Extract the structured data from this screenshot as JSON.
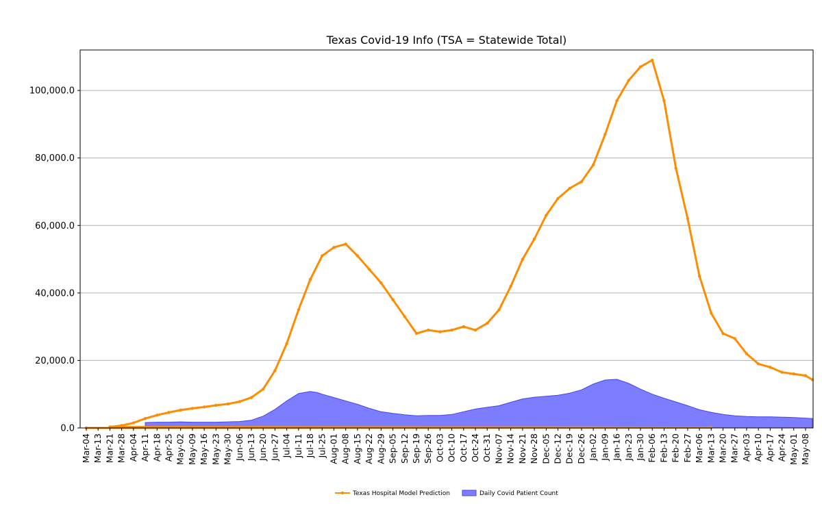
{
  "chart_data": {
    "type": "line",
    "title": "Texas Covid-19 Info (TSA = Statewide Total)",
    "xlabel": "",
    "ylabel": "",
    "ylim": [
      0,
      112000
    ],
    "grid": "horizontal",
    "legend_placement": "bottom-center",
    "x_tick_labels": [
      "Mar-04",
      "Mar-13",
      "Mar-21",
      "Mar-28",
      "Apr-04",
      "Apr-11",
      "Apr-18",
      "Apr-25",
      "May-02",
      "May-09",
      "May-16",
      "May-23",
      "May-30",
      "Jun-06",
      "Jun-13",
      "Jun-20",
      "Jun-27",
      "Jul-04",
      "Jul-11",
      "Jul-18",
      "Jul-25",
      "Aug-01",
      "Aug-08",
      "Aug-15",
      "Aug-22",
      "Aug-29",
      "Sep-05",
      "Sep-12",
      "Sep-19",
      "Sep-26",
      "Oct-03",
      "Oct-10",
      "Oct-17",
      "Oct-24",
      "Oct-31",
      "Nov-07",
      "Nov-14",
      "Nov-21",
      "Nov-28",
      "Dec-05",
      "Dec-12",
      "Dec-19",
      "Dec-26",
      "Jan-02",
      "Jan-09",
      "Jan-16",
      "Jan-23",
      "Jan-30",
      "Feb-06",
      "Feb-13",
      "Feb-20",
      "Feb-27",
      "Mar-06",
      "Mar-13",
      "Mar-20",
      "Mar-27",
      "Apr-03",
      "Apr-10",
      "Apr-17",
      "Apr-24",
      "May-01",
      "May-08"
    ],
    "y_ticks": [
      0,
      20000,
      40000,
      60000,
      80000,
      100000
    ],
    "y_tick_labels": [
      "0.0",
      "20,000.0",
      "40,000.0",
      "60,000.0",
      "80,000.0",
      "100,000.0"
    ],
    "series": [
      {
        "name": "Texas Hospital Model Prediction",
        "kind": "line",
        "color": "#ff8c00",
        "points": [
          [
            "Mar-04",
            0
          ],
          [
            "Mar-13",
            100
          ],
          [
            "Mar-21",
            300
          ],
          [
            "Mar-28",
            700
          ],
          [
            "Apr-04",
            1500
          ],
          [
            "Apr-11",
            2800
          ],
          [
            "Apr-18",
            3800
          ],
          [
            "Apr-25",
            4600
          ],
          [
            "May-02",
            5300
          ],
          [
            "May-09",
            5800
          ],
          [
            "May-16",
            6200
          ],
          [
            "May-23",
            6700
          ],
          [
            "May-30",
            7100
          ],
          [
            "Jun-06",
            7800
          ],
          [
            "Jun-13",
            9000
          ],
          [
            "Jun-20",
            11500
          ],
          [
            "Jun-27",
            17000
          ],
          [
            "Jul-04",
            25000
          ],
          [
            "Jul-11",
            35000
          ],
          [
            "Jul-18",
            44000
          ],
          [
            "Jul-25",
            51000
          ],
          [
            "Aug-01",
            53500
          ],
          [
            "Aug-08",
            54500
          ],
          [
            "Aug-15",
            51000
          ],
          [
            "Aug-22",
            47000
          ],
          [
            "Aug-29",
            43000
          ],
          [
            "Sep-05",
            38000
          ],
          [
            "Sep-12",
            33000
          ],
          [
            "Sep-19",
            28000
          ],
          [
            "Sep-26",
            29000
          ],
          [
            "Oct-03",
            28500
          ],
          [
            "Oct-10",
            29000
          ],
          [
            "Oct-17",
            30000
          ],
          [
            "Oct-24",
            29000
          ],
          [
            "Oct-31",
            31000
          ],
          [
            "Nov-07",
            35000
          ],
          [
            "Nov-14",
            42000
          ],
          [
            "Nov-21",
            50000
          ],
          [
            "Nov-28",
            56000
          ],
          [
            "Dec-05",
            63000
          ],
          [
            "Dec-12",
            68000
          ],
          [
            "Dec-19",
            71000
          ],
          [
            "Dec-26",
            73000
          ],
          [
            "Jan-02",
            78000
          ],
          [
            "Jan-09",
            87000
          ],
          [
            "Jan-16",
            97000
          ],
          [
            "Jan-23",
            103000
          ],
          [
            "Jan-30",
            107000
          ],
          [
            "Feb-06",
            109000
          ],
          [
            "Feb-13",
            97000
          ],
          [
            "Feb-20",
            77000
          ],
          [
            "Feb-27",
            62000
          ],
          [
            "Mar-06",
            45000
          ],
          [
            "Mar-13",
            34000
          ],
          [
            "Mar-20",
            28000
          ],
          [
            "Mar-27",
            26500
          ],
          [
            "Apr-03",
            22000
          ],
          [
            "Apr-10",
            19000
          ],
          [
            "Apr-17",
            18000
          ],
          [
            "Apr-24",
            16500
          ],
          [
            "May-01",
            16000
          ],
          [
            "May-08",
            15500
          ],
          [
            "May-12",
            14300
          ]
        ]
      },
      {
        "name": "Daily Covid Patient Count",
        "kind": "area",
        "color": "#6666ff",
        "points": [
          [
            "Apr-11",
            1600
          ],
          [
            "Apr-18",
            1700
          ],
          [
            "Apr-25",
            1700
          ],
          [
            "May-02",
            1800
          ],
          [
            "May-09",
            1700
          ],
          [
            "May-16",
            1700
          ],
          [
            "May-23",
            1700
          ],
          [
            "May-30",
            1800
          ],
          [
            "Jun-06",
            1900
          ],
          [
            "Jun-13",
            2300
          ],
          [
            "Jun-20",
            3500
          ],
          [
            "Jun-27",
            5500
          ],
          [
            "Jul-04",
            8000
          ],
          [
            "Jul-11",
            10200
          ],
          [
            "Jul-18",
            10800
          ],
          [
            "Jul-22",
            10500
          ],
          [
            "Jul-25",
            10000
          ],
          [
            "Aug-01",
            9000
          ],
          [
            "Aug-08",
            8000
          ],
          [
            "Aug-15",
            7000
          ],
          [
            "Aug-22",
            5800
          ],
          [
            "Aug-29",
            4800
          ],
          [
            "Sep-05",
            4300
          ],
          [
            "Sep-12",
            3900
          ],
          [
            "Sep-19",
            3600
          ],
          [
            "Sep-26",
            3700
          ],
          [
            "Oct-03",
            3700
          ],
          [
            "Oct-10",
            4000
          ],
          [
            "Oct-17",
            4800
          ],
          [
            "Oct-24",
            5600
          ],
          [
            "Oct-31",
            6100
          ],
          [
            "Nov-07",
            6600
          ],
          [
            "Nov-14",
            7600
          ],
          [
            "Nov-21",
            8600
          ],
          [
            "Nov-28",
            9100
          ],
          [
            "Dec-05",
            9400
          ],
          [
            "Dec-12",
            9700
          ],
          [
            "Dec-19",
            10300
          ],
          [
            "Dec-26",
            11300
          ],
          [
            "Jan-02",
            13000
          ],
          [
            "Jan-09",
            14200
          ],
          [
            "Jan-16",
            14400
          ],
          [
            "Jan-23",
            13200
          ],
          [
            "Jan-30",
            11500
          ],
          [
            "Feb-06",
            10000
          ],
          [
            "Feb-13",
            8800
          ],
          [
            "Feb-20",
            7700
          ],
          [
            "Feb-27",
            6600
          ],
          [
            "Mar-06",
            5400
          ],
          [
            "Mar-13",
            4600
          ],
          [
            "Mar-20",
            4000
          ],
          [
            "Mar-27",
            3600
          ],
          [
            "Apr-03",
            3400
          ],
          [
            "Apr-10",
            3300
          ],
          [
            "Apr-17",
            3300
          ],
          [
            "Apr-24",
            3200
          ],
          [
            "May-01",
            3100
          ],
          [
            "May-08",
            2900
          ],
          [
            "May-12",
            2800
          ]
        ]
      }
    ]
  }
}
